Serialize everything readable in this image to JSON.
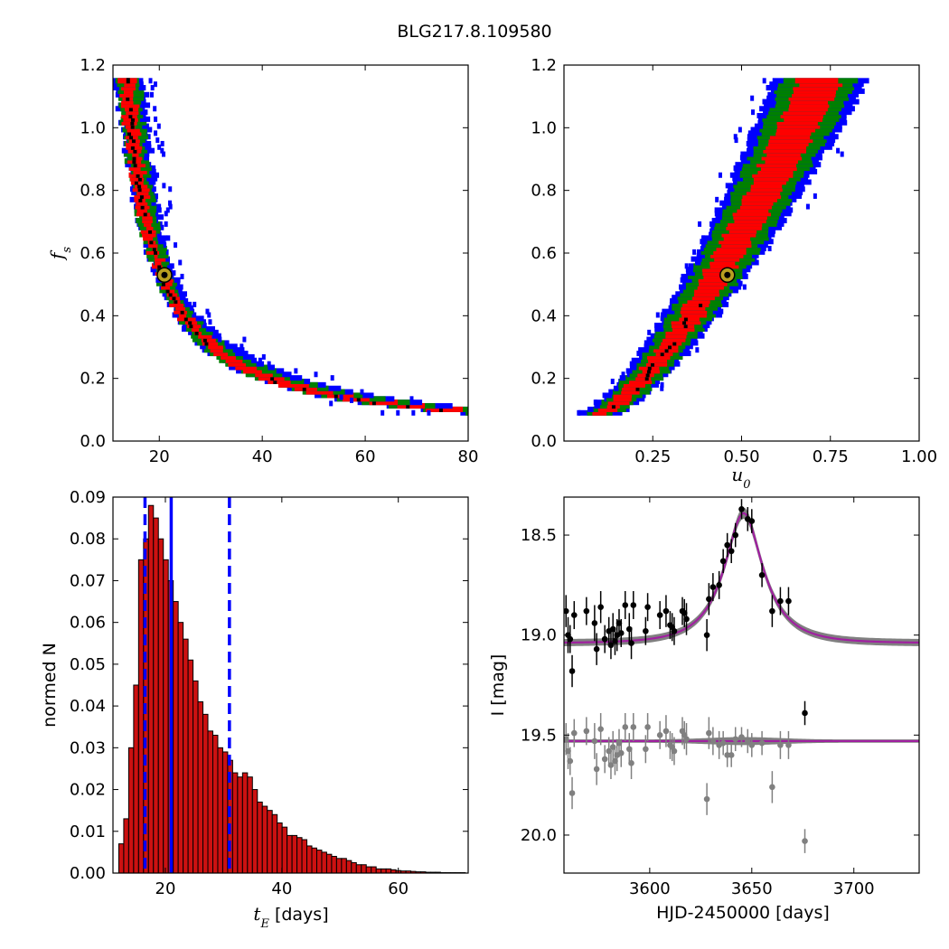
{
  "figure": {
    "title": "BLG217.8.109580"
  },
  "colors": {
    "sigma1": "#ff0000",
    "sigma2": "#008000",
    "sigma3": "#0000ff",
    "samples": "#000000",
    "best_marker_fill": "#b8a020",
    "hist_bar": "#cc1111",
    "hist_edge": "#000000",
    "vlines": "#0000ff",
    "model": "#a020a0",
    "model_band": "#808080",
    "data_main": "#000000",
    "data_resid": "#808080"
  },
  "chart_data": [
    {
      "type": "heatmap",
      "id": "tE_vs_fs",
      "xlabel": "",
      "ylabel": "f_s",
      "xlim": [
        11,
        80
      ],
      "ylim": [
        0.0,
        1.2
      ],
      "xticks": [
        "20",
        "40",
        "60",
        "80"
      ],
      "yticks": [
        "0.0",
        "0.2",
        "0.4",
        "0.6",
        "0.8",
        "1.0",
        "1.2"
      ],
      "relation": "f_s * (tE - 7.7) ~ 6.75",
      "fs_range": [
        0.09,
        1.15
      ],
      "best_fit": {
        "x": 21,
        "y": 0.53
      },
      "confidence_levels": [
        "1-sigma",
        "2-sigma",
        "3-sigma"
      ]
    },
    {
      "type": "heatmap",
      "id": "u0_vs_fs",
      "xlabel": "u_0",
      "ylabel": "",
      "xlim": [
        0.0,
        1.0
      ],
      "ylim": [
        0.0,
        1.2
      ],
      "xticks": [
        "0.25",
        "0.50",
        "0.75",
        "1.00"
      ],
      "yticks": [
        "0.0",
        "0.2",
        "0.4",
        "0.6",
        "0.8",
        "1.0",
        "1.2"
      ],
      "u0_range": [
        0.1,
        0.84
      ],
      "best_fit": {
        "x": 0.46,
        "y": 0.53
      },
      "confidence_levels": [
        "1-sigma",
        "2-sigma",
        "3-sigma"
      ]
    },
    {
      "type": "bar",
      "id": "tE_histogram",
      "xlabel": "[days]",
      "xlabel_math": "t_E",
      "ylabel": "normed N",
      "xlim": [
        11,
        72
      ],
      "ylim": [
        0.0,
        0.09
      ],
      "xticks": [
        "20",
        "40",
        "60"
      ],
      "yticks": [
        "0.00",
        "0.01",
        "0.02",
        "0.03",
        "0.04",
        "0.05",
        "0.06",
        "0.07",
        "0.08",
        "0.09"
      ],
      "bin_start": 12.0,
      "bin_width": 0.85,
      "values": [
        0.007,
        0.013,
        0.03,
        0.045,
        0.075,
        0.08,
        0.088,
        0.085,
        0.08,
        0.075,
        0.07,
        0.065,
        0.06,
        0.056,
        0.051,
        0.046,
        0.041,
        0.038,
        0.034,
        0.033,
        0.03,
        0.029,
        0.027,
        0.024,
        0.023,
        0.024,
        0.023,
        0.02,
        0.017,
        0.016,
        0.015,
        0.014,
        0.012,
        0.011,
        0.009,
        0.009,
        0.0085,
        0.008,
        0.0065,
        0.006,
        0.0055,
        0.005,
        0.0045,
        0.004,
        0.0035,
        0.0035,
        0.003,
        0.0025,
        0.002,
        0.002,
        0.0015,
        0.0015,
        0.001,
        0.001,
        0.001,
        0.0008,
        0.0006,
        0.0005,
        0.0005,
        0.0004,
        0.0003,
        0.0003,
        0.0002,
        0.0002,
        0.0002,
        0.0001,
        0.0001,
        0.0001,
        0.0001,
        0.0001
      ],
      "median": 21.0,
      "ci_low": 16.5,
      "ci_high": 31.0
    },
    {
      "type": "scatter",
      "id": "light_curve",
      "xlabel": "HJD-2450000 [days]",
      "ylabel": "I [mag]",
      "xlim": [
        3558,
        3732
      ],
      "ylim": [
        20.19,
        18.31
      ],
      "y_inverted": true,
      "xticks": [
        "3600",
        "3650",
        "3700"
      ],
      "yticks": [
        "18.5",
        "19.0",
        "19.5",
        "20.0"
      ],
      "model": {
        "baseline": 19.04,
        "peak_mag": 18.39,
        "t0": 3646,
        "tE": 21,
        "u0": 0.46
      },
      "residual_offset": 19.53,
      "data": [
        {
          "x": 3559,
          "y": 18.88,
          "err": 0.08
        },
        {
          "x": 3560,
          "y": 19.0,
          "err": 0.09
        },
        {
          "x": 3561,
          "y": 19.02,
          "err": 0.07
        },
        {
          "x": 3562,
          "y": 19.18,
          "err": 0.08
        },
        {
          "x": 3563,
          "y": 18.9,
          "err": 0.07
        },
        {
          "x": 3569,
          "y": 18.88,
          "err": 0.07
        },
        {
          "x": 3573,
          "y": 18.94,
          "err": 0.09
        },
        {
          "x": 3574,
          "y": 19.07,
          "err": 0.08
        },
        {
          "x": 3576,
          "y": 18.86,
          "err": 0.08
        },
        {
          "x": 3578,
          "y": 19.02,
          "err": 0.07
        },
        {
          "x": 3580,
          "y": 18.98,
          "err": 0.07
        },
        {
          "x": 3581,
          "y": 19.05,
          "err": 0.07
        },
        {
          "x": 3582,
          "y": 18.97,
          "err": 0.08
        },
        {
          "x": 3583,
          "y": 19.03,
          "err": 0.07
        },
        {
          "x": 3584,
          "y": 19.0,
          "err": 0.08
        },
        {
          "x": 3585,
          "y": 18.94,
          "err": 0.07
        },
        {
          "x": 3586,
          "y": 18.99,
          "err": 0.07
        },
        {
          "x": 3588,
          "y": 18.85,
          "err": 0.07
        },
        {
          "x": 3590,
          "y": 18.97,
          "err": 0.08
        },
        {
          "x": 3591,
          "y": 19.04,
          "err": 0.08
        },
        {
          "x": 3592,
          "y": 18.85,
          "err": 0.07
        },
        {
          "x": 3598,
          "y": 18.98,
          "err": 0.07
        },
        {
          "x": 3599,
          "y": 18.86,
          "err": 0.07
        },
        {
          "x": 3605,
          "y": 18.9,
          "err": 0.07
        },
        {
          "x": 3608,
          "y": 18.88,
          "err": 0.08
        },
        {
          "x": 3610,
          "y": 18.95,
          "err": 0.07
        },
        {
          "x": 3611,
          "y": 18.96,
          "err": 0.07
        },
        {
          "x": 3612,
          "y": 18.98,
          "err": 0.07
        },
        {
          "x": 3616,
          "y": 18.88,
          "err": 0.07
        },
        {
          "x": 3617,
          "y": 18.89,
          "err": 0.07
        },
        {
          "x": 3618,
          "y": 18.92,
          "err": 0.08
        },
        {
          "x": 3628,
          "y": 19.0,
          "err": 0.08
        },
        {
          "x": 3629,
          "y": 18.82,
          "err": 0.08
        },
        {
          "x": 3631,
          "y": 18.76,
          "err": 0.07
        },
        {
          "x": 3634,
          "y": 18.75,
          "err": 0.07
        },
        {
          "x": 3636,
          "y": 18.63,
          "err": 0.06
        },
        {
          "x": 3638,
          "y": 18.55,
          "err": 0.06
        },
        {
          "x": 3640,
          "y": 18.58,
          "err": 0.06
        },
        {
          "x": 3642,
          "y": 18.5,
          "err": 0.06
        },
        {
          "x": 3645,
          "y": 18.37,
          "err": 0.05
        },
        {
          "x": 3648,
          "y": 18.42,
          "err": 0.06
        },
        {
          "x": 3650,
          "y": 18.43,
          "err": 0.06
        },
        {
          "x": 3655,
          "y": 18.7,
          "err": 0.06
        },
        {
          "x": 3660,
          "y": 18.88,
          "err": 0.08
        },
        {
          "x": 3664,
          "y": 18.83,
          "err": 0.07
        },
        {
          "x": 3668,
          "y": 18.83,
          "err": 0.07
        },
        {
          "x": 3676,
          "y": 19.39,
          "err": 0.06
        }
      ],
      "residuals": [
        {
          "x": 3559,
          "y": 19.52,
          "err": 0.08
        },
        {
          "x": 3560,
          "y": 19.58,
          "err": 0.09
        },
        {
          "x": 3561,
          "y": 19.63,
          "err": 0.07
        },
        {
          "x": 3562,
          "y": 19.79,
          "err": 0.08
        },
        {
          "x": 3563,
          "y": 19.49,
          "err": 0.07
        },
        {
          "x": 3569,
          "y": 19.48,
          "err": 0.07
        },
        {
          "x": 3573,
          "y": 19.53,
          "err": 0.09
        },
        {
          "x": 3574,
          "y": 19.67,
          "err": 0.08
        },
        {
          "x": 3576,
          "y": 19.47,
          "err": 0.08
        },
        {
          "x": 3578,
          "y": 19.62,
          "err": 0.07
        },
        {
          "x": 3580,
          "y": 19.58,
          "err": 0.07
        },
        {
          "x": 3581,
          "y": 19.65,
          "err": 0.07
        },
        {
          "x": 3582,
          "y": 19.56,
          "err": 0.08
        },
        {
          "x": 3583,
          "y": 19.63,
          "err": 0.07
        },
        {
          "x": 3584,
          "y": 19.6,
          "err": 0.08
        },
        {
          "x": 3585,
          "y": 19.54,
          "err": 0.07
        },
        {
          "x": 3586,
          "y": 19.59,
          "err": 0.07
        },
        {
          "x": 3588,
          "y": 19.46,
          "err": 0.07
        },
        {
          "x": 3590,
          "y": 19.57,
          "err": 0.08
        },
        {
          "x": 3591,
          "y": 19.64,
          "err": 0.08
        },
        {
          "x": 3592,
          "y": 19.46,
          "err": 0.07
        },
        {
          "x": 3598,
          "y": 19.57,
          "err": 0.07
        },
        {
          "x": 3599,
          "y": 19.46,
          "err": 0.07
        },
        {
          "x": 3605,
          "y": 19.5,
          "err": 0.07
        },
        {
          "x": 3608,
          "y": 19.48,
          "err": 0.08
        },
        {
          "x": 3610,
          "y": 19.55,
          "err": 0.07
        },
        {
          "x": 3611,
          "y": 19.56,
          "err": 0.07
        },
        {
          "x": 3612,
          "y": 19.58,
          "err": 0.07
        },
        {
          "x": 3616,
          "y": 19.48,
          "err": 0.07
        },
        {
          "x": 3617,
          "y": 19.5,
          "err": 0.07
        },
        {
          "x": 3618,
          "y": 19.52,
          "err": 0.08
        },
        {
          "x": 3628,
          "y": 19.82,
          "err": 0.08
        },
        {
          "x": 3629,
          "y": 19.49,
          "err": 0.08
        },
        {
          "x": 3631,
          "y": 19.53,
          "err": 0.07
        },
        {
          "x": 3634,
          "y": 19.55,
          "err": 0.07
        },
        {
          "x": 3636,
          "y": 19.54,
          "err": 0.06
        },
        {
          "x": 3638,
          "y": 19.6,
          "err": 0.06
        },
        {
          "x": 3640,
          "y": 19.6,
          "err": 0.06
        },
        {
          "x": 3642,
          "y": 19.52,
          "err": 0.06
        },
        {
          "x": 3645,
          "y": 19.51,
          "err": 0.05
        },
        {
          "x": 3648,
          "y": 19.53,
          "err": 0.06
        },
        {
          "x": 3650,
          "y": 19.55,
          "err": 0.06
        },
        {
          "x": 3655,
          "y": 19.54,
          "err": 0.06
        },
        {
          "x": 3660,
          "y": 19.76,
          "err": 0.08
        },
        {
          "x": 3664,
          "y": 19.55,
          "err": 0.07
        },
        {
          "x": 3668,
          "y": 19.55,
          "err": 0.07
        },
        {
          "x": 3676,
          "y": 20.03,
          "err": 0.06
        }
      ]
    }
  ]
}
